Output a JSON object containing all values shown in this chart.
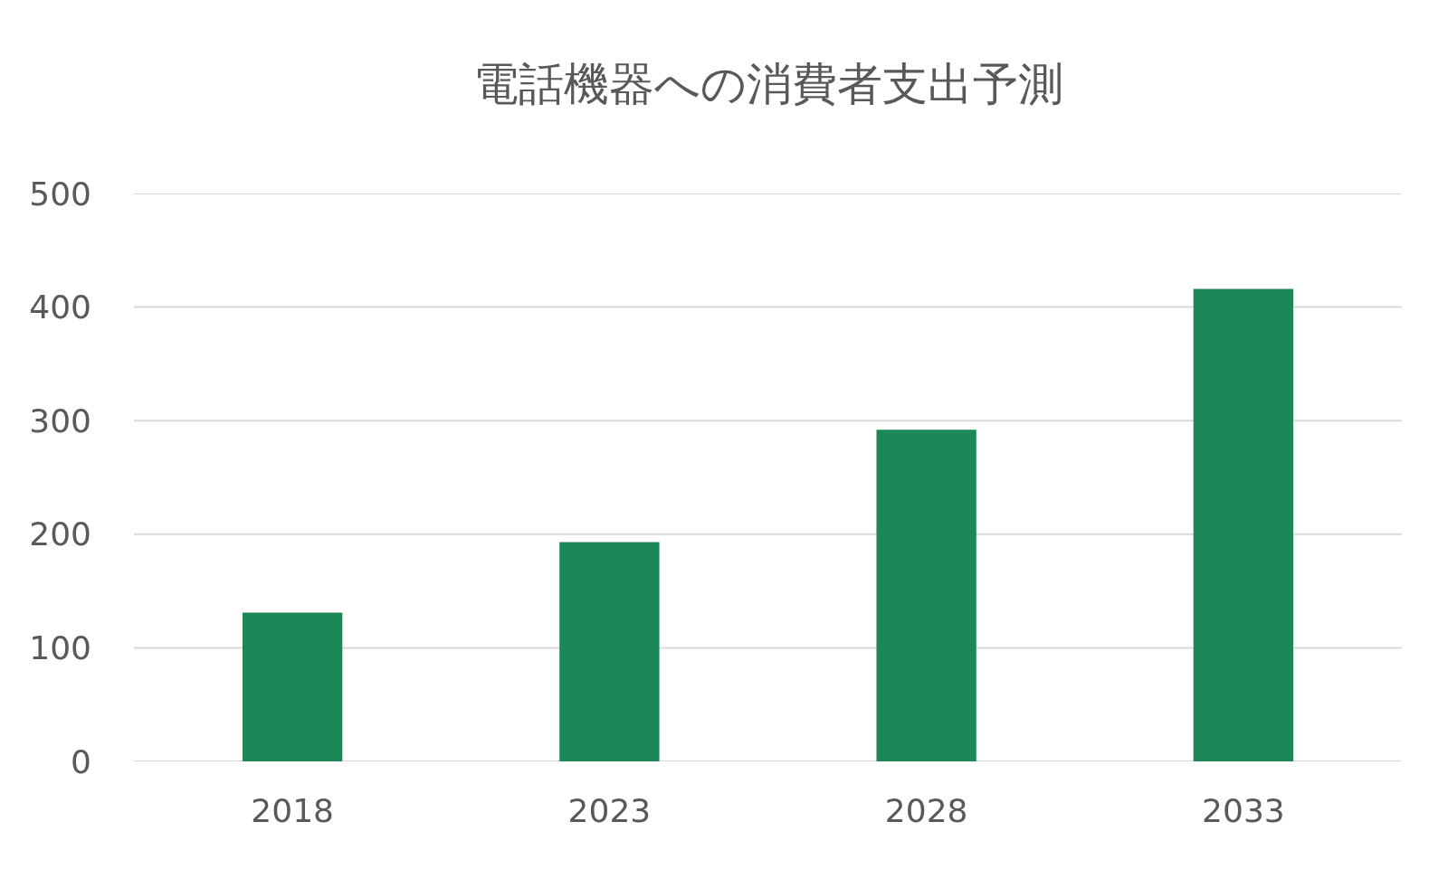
{
  "chart_data": {
    "type": "bar",
    "title": "電話機器への消費者支出予測",
    "categories": [
      "2018",
      "2023",
      "2028",
      "2033"
    ],
    "values": [
      131,
      193,
      292,
      416
    ],
    "color": "#1e8757",
    "ylim": [
      0,
      500
    ],
    "yticks": [
      0,
      100,
      200,
      300,
      400,
      500
    ],
    "grid": "y"
  }
}
